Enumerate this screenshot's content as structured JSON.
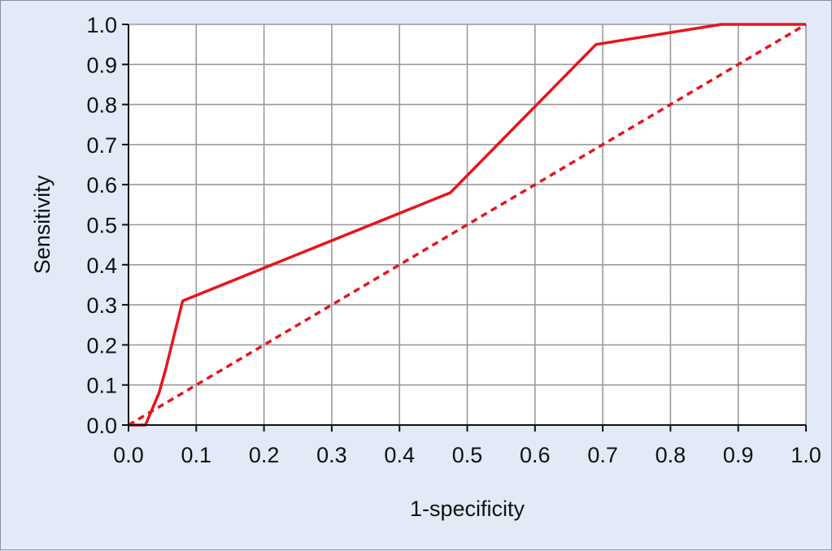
{
  "chart_data": {
    "type": "line",
    "xlabel": "1-specificity",
    "ylabel": "Sensitivity",
    "xlim": [
      0,
      1
    ],
    "ylim": [
      0,
      1
    ],
    "x_ticks": [
      "0.0",
      "0.1",
      "0.2",
      "0.3",
      "0.4",
      "0.5",
      "0.6",
      "0.7",
      "0.8",
      "0.9",
      "1.0"
    ],
    "y_ticks": [
      "0.0",
      "0.1",
      "0.2",
      "0.3",
      "0.4",
      "0.5",
      "0.6",
      "0.7",
      "0.8",
      "0.9",
      "1.0"
    ],
    "grid": true,
    "series": [
      {
        "style": "solid",
        "color": "#e8141c",
        "x": [
          0.0,
          0.025,
          0.045,
          0.055,
          0.08,
          0.475,
          0.69,
          0.875,
          1.0
        ],
        "y": [
          0.0,
          0.0,
          0.08,
          0.14,
          0.31,
          0.58,
          0.95,
          1.0,
          1.0
        ]
      },
      {
        "style": "dashed",
        "color": "#e8141c",
        "x": [
          0.0,
          1.0
        ],
        "y": [
          0.0,
          1.0
        ]
      }
    ]
  },
  "colors": {
    "background": "#e2eaf8",
    "plot_area": "#ffffff",
    "grid": "#9a9a9a",
    "axis": "#111111"
  }
}
